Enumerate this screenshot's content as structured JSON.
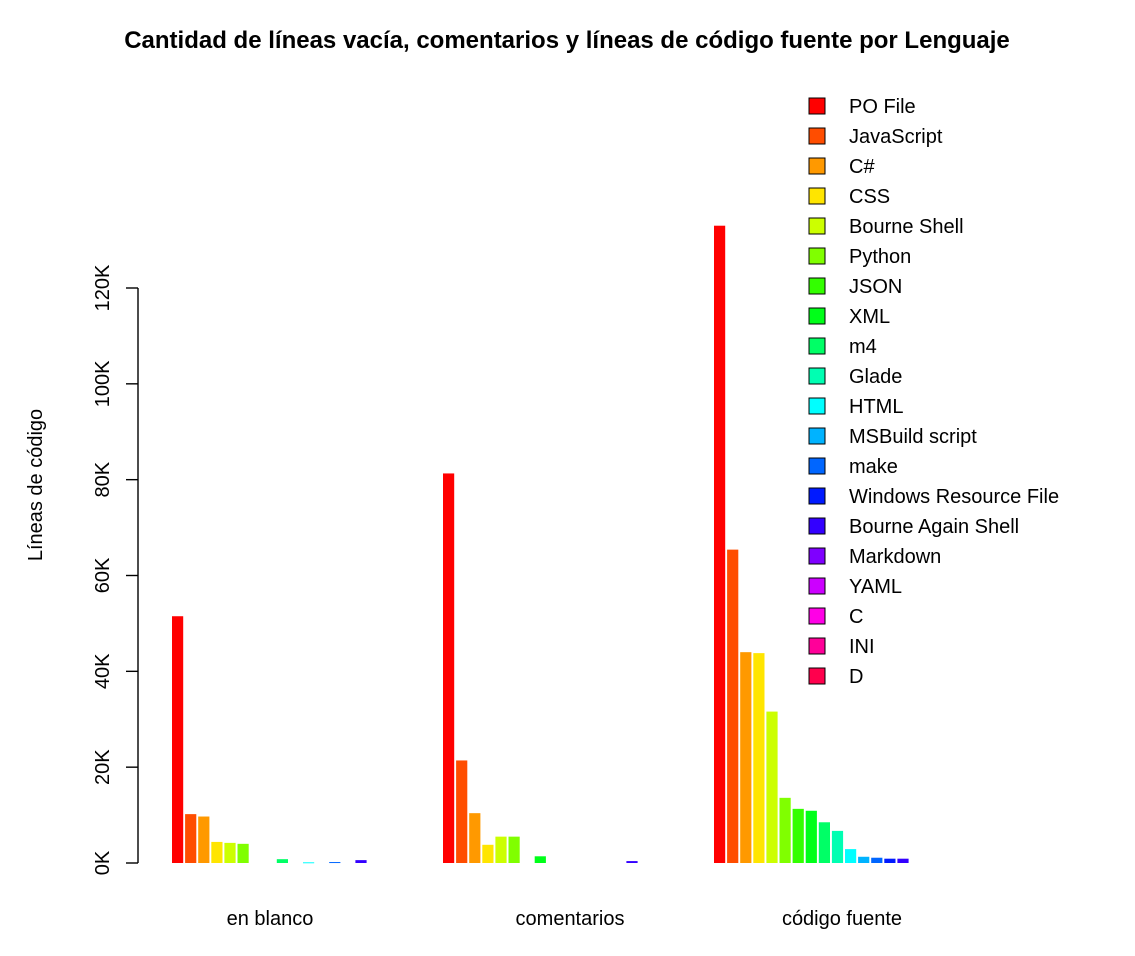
{
  "chart_data": {
    "type": "bar",
    "title": "Cantidad de líneas vacía, comentarios y líneas de código fuente por Lenguaje",
    "xlabel": "",
    "ylabel": "Líneas de código",
    "ylim": [
      0,
      135000
    ],
    "y_ticks": [
      0,
      20000,
      40000,
      60000,
      80000,
      100000,
      120000
    ],
    "y_tick_labels": [
      "0K",
      "20K",
      "40K",
      "60K",
      "80K",
      "100K",
      "120K"
    ],
    "grid": false,
    "legend_position": "top-right",
    "categories": [
      "en blanco",
      "comentarios",
      "código fuente"
    ],
    "series": [
      {
        "name": "PO File",
        "color": "#FF0000",
        "values": [
          51500,
          81300,
          133000
        ]
      },
      {
        "name": "JavaScript",
        "color": "#FF4D00",
        "values": [
          10200,
          21400,
          65400
        ]
      },
      {
        "name": "C#",
        "color": "#FF9900",
        "values": [
          9700,
          10400,
          44000
        ]
      },
      {
        "name": "CSS",
        "color": "#FFE500",
        "values": [
          4400,
          3800,
          43800
        ]
      },
      {
        "name": "Bourne Shell",
        "color": "#CCFF00",
        "values": [
          4200,
          5500,
          31600
        ]
      },
      {
        "name": "Python",
        "color": "#80FF00",
        "values": [
          4000,
          5500,
          13600
        ]
      },
      {
        "name": "JSON",
        "color": "#33FF00",
        "values": [
          0,
          0,
          11300
        ]
      },
      {
        "name": "XML",
        "color": "#00FF19",
        "values": [
          0,
          1400,
          10900
        ]
      },
      {
        "name": "m4",
        "color": "#00FF66",
        "values": [
          800,
          0,
          8500
        ]
      },
      {
        "name": "Glade",
        "color": "#00FFB2",
        "values": [
          0,
          0,
          6700
        ]
      },
      {
        "name": "HTML",
        "color": "#00FFFF",
        "values": [
          150,
          0,
          2900
        ]
      },
      {
        "name": "MSBuild script",
        "color": "#00B3FF",
        "values": [
          0,
          0,
          1300
        ]
      },
      {
        "name": "make",
        "color": "#0066FF",
        "values": [
          200,
          0,
          1100
        ]
      },
      {
        "name": "Windows Resource File",
        "color": "#001AFF",
        "values": [
          0,
          0,
          900
        ]
      },
      {
        "name": "Bourne Again Shell",
        "color": "#3300FF",
        "values": [
          600,
          400,
          900
        ]
      },
      {
        "name": "Markdown",
        "color": "#7F00FF",
        "values": [
          0,
          0,
          0
        ]
      },
      {
        "name": "YAML",
        "color": "#CC00FF",
        "values": [
          0,
          0,
          0
        ]
      },
      {
        "name": "C",
        "color": "#FF00E6",
        "values": [
          0,
          0,
          0
        ]
      },
      {
        "name": "INI",
        "color": "#FF0099",
        "values": [
          0,
          0,
          0
        ]
      },
      {
        "name": "D",
        "color": "#FF004D",
        "values": [
          0,
          0,
          0
        ]
      }
    ]
  }
}
